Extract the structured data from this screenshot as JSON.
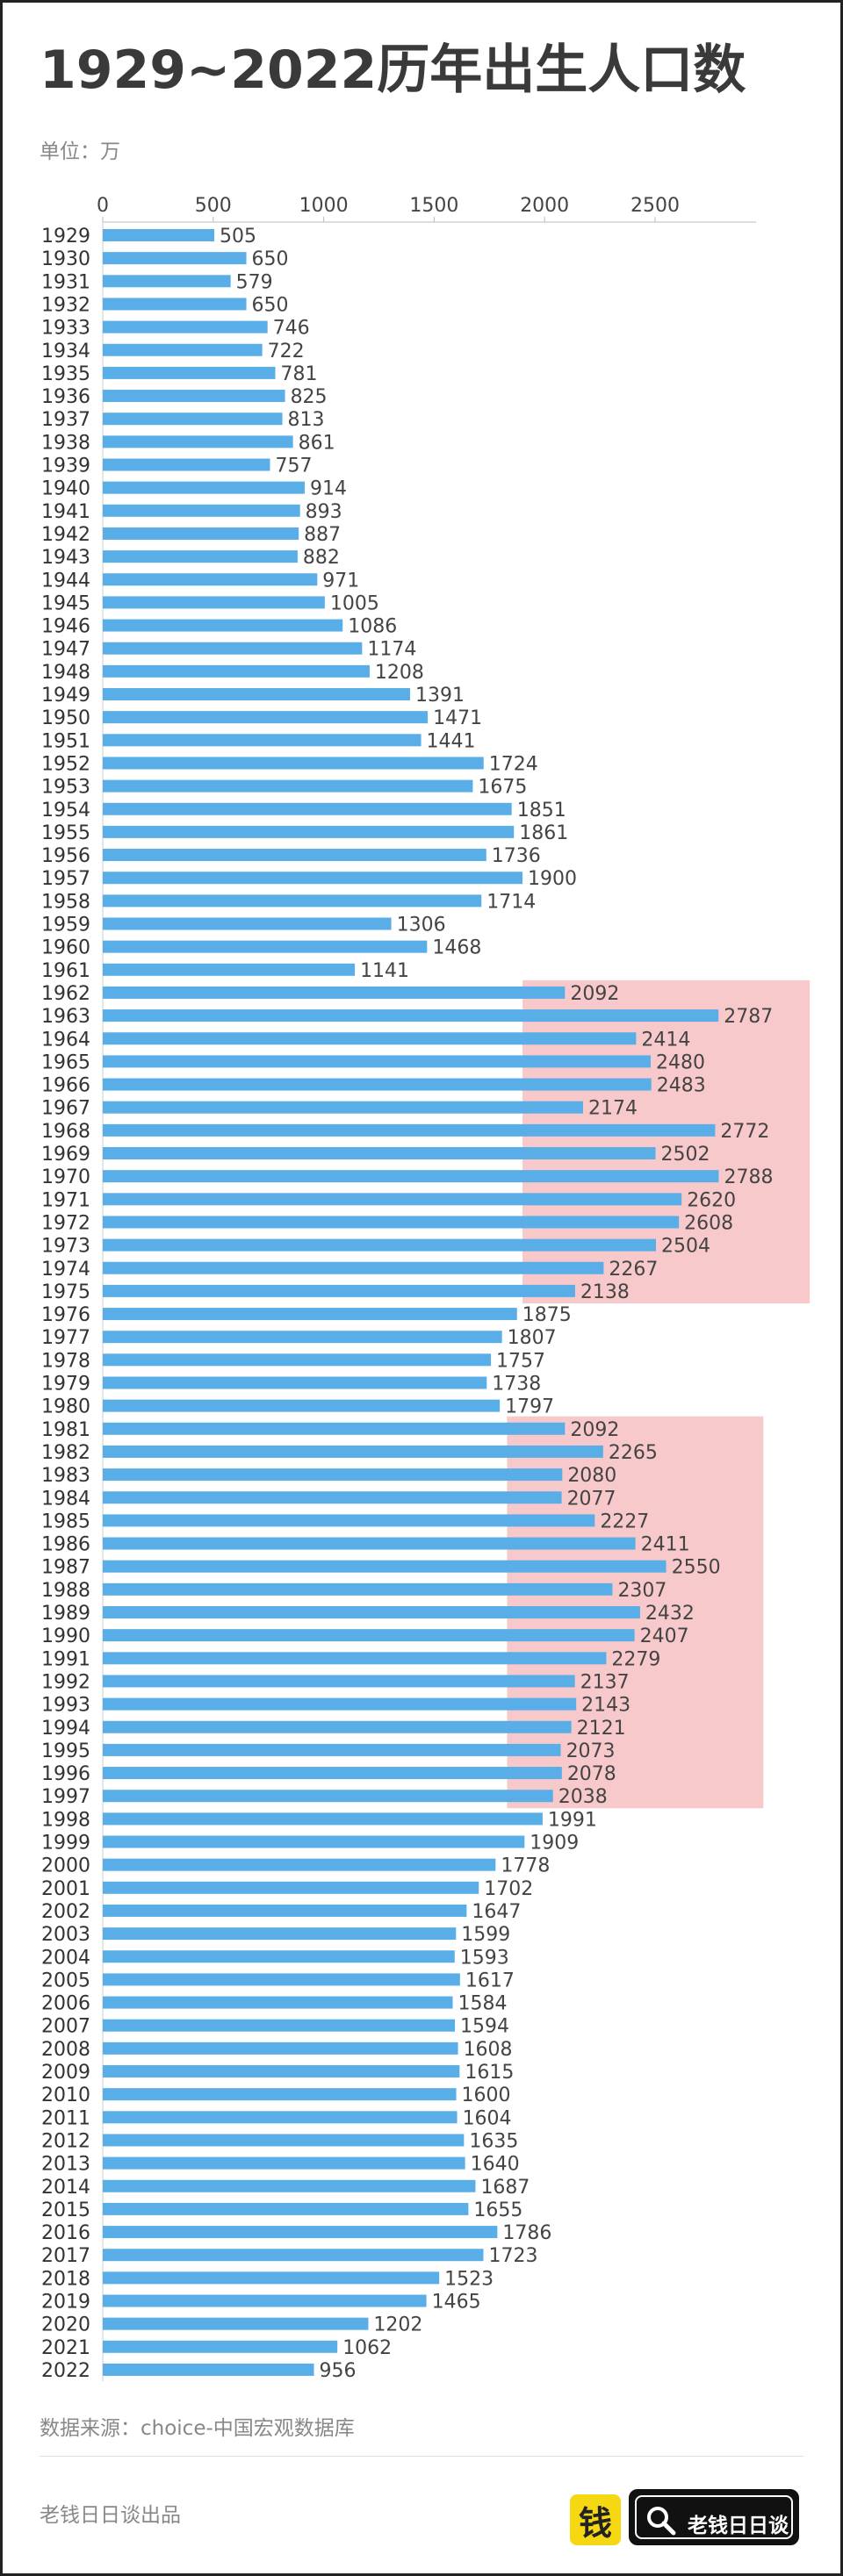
{
  "title": "1929~2022历年出生人口数",
  "unit_label": "单位：万",
  "source": "数据来源：choice-中国宏观数据库",
  "producer": "老钱日日谈出品",
  "logo": {
    "icon_text": "钱",
    "name": "老钱日日谈"
  },
  "colors": {
    "bar": "#5aaee8",
    "highlight": "#f8c9cb"
  },
  "chart_data": {
    "type": "bar",
    "orientation": "horizontal",
    "title": "1929~2022历年出生人口数",
    "unit": "万",
    "xlim": [
      0,
      2900
    ],
    "xticks": [
      0,
      500,
      1000,
      1500,
      2000,
      2500
    ],
    "grid": false,
    "categories": [
      "1929",
      "1930",
      "1931",
      "1932",
      "1933",
      "1934",
      "1935",
      "1936",
      "1937",
      "1938",
      "1939",
      "1940",
      "1941",
      "1942",
      "1943",
      "1944",
      "1945",
      "1946",
      "1947",
      "1948",
      "1949",
      "1950",
      "1951",
      "1952",
      "1953",
      "1954",
      "1955",
      "1956",
      "1957",
      "1958",
      "1959",
      "1960",
      "1961",
      "1962",
      "1963",
      "1964",
      "1965",
      "1966",
      "1967",
      "1968",
      "1969",
      "1970",
      "1971",
      "1972",
      "1973",
      "1974",
      "1975",
      "1976",
      "1977",
      "1978",
      "1979",
      "1980",
      "1981",
      "1982",
      "1983",
      "1984",
      "1985",
      "1986",
      "1987",
      "1988",
      "1989",
      "1990",
      "1991",
      "1992",
      "1993",
      "1994",
      "1995",
      "1996",
      "1997",
      "1998",
      "1999",
      "2000",
      "2001",
      "2002",
      "2003",
      "2004",
      "2005",
      "2006",
      "2007",
      "2008",
      "2009",
      "2010",
      "2011",
      "2012",
      "2013",
      "2014",
      "2015",
      "2016",
      "2017",
      "2018",
      "2019",
      "2020",
      "2021",
      "2022"
    ],
    "values": [
      505,
      650,
      579,
      650,
      746,
      722,
      781,
      825,
      813,
      861,
      757,
      914,
      893,
      887,
      882,
      971,
      1005,
      1086,
      1174,
      1208,
      1391,
      1471,
      1441,
      1724,
      1675,
      1851,
      1861,
      1736,
      1900,
      1714,
      1306,
      1468,
      1141,
      2092,
      2787,
      2414,
      2480,
      2483,
      2174,
      2772,
      2502,
      2788,
      2620,
      2608,
      2504,
      2267,
      2138,
      1875,
      1807,
      1757,
      1738,
      1797,
      2092,
      2265,
      2080,
      2077,
      2227,
      2411,
      2550,
      2307,
      2432,
      2407,
      2279,
      2137,
      2143,
      2121,
      2073,
      2078,
      2038,
      1991,
      1909,
      1778,
      1702,
      1647,
      1599,
      1593,
      1617,
      1584,
      1594,
      1608,
      1615,
      1600,
      1604,
      1635,
      1640,
      1687,
      1655,
      1786,
      1723,
      1523,
      1465,
      1202,
      1062,
      956
    ],
    "highlight_bands": [
      {
        "from": "1962",
        "to": "1975",
        "start_value": 1900,
        "end_value": 3200
      },
      {
        "from": "1981",
        "to": "1997",
        "start_value": 1830,
        "end_value": 2990
      }
    ]
  }
}
